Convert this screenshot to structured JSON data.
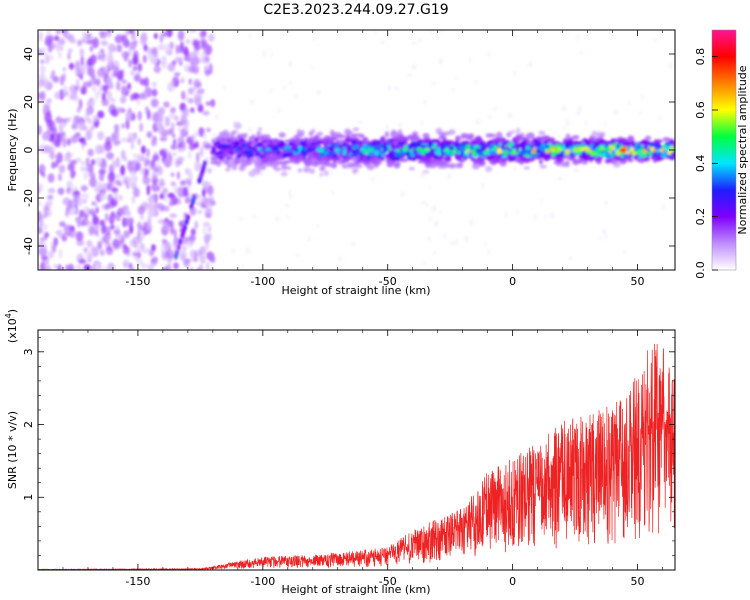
{
  "title": "C2E3.2023.244.09.27.G19",
  "chart_data": [
    {
      "type": "heatmap",
      "name": "spectrogram",
      "xlabel": "Height of straight line (km)",
      "ylabel": "Frequency (Hz)",
      "xlim": [
        -190,
        65
      ],
      "ylim": [
        -50,
        50
      ],
      "xticks": [
        -150,
        -100,
        -50,
        0,
        50
      ],
      "yticks": [
        -40,
        -20,
        0,
        20,
        40
      ],
      "colorbar": {
        "label": "Normalized spectral amplitude",
        "range": [
          0.0,
          0.9
        ],
        "ticks": [
          "0.0",
          "0.2",
          "0.4",
          "0.6",
          "0.8"
        ],
        "tick_values": [
          0.0,
          0.2,
          0.4,
          0.6,
          0.8
        ],
        "colormap": [
          "#ffffff",
          "#c08cff",
          "#7f00ff",
          "#1e1eff",
          "#00e5ff",
          "#00ff40",
          "#ffff00",
          "#ff8000",
          "#ff0000",
          "#ff1493"
        ]
      },
      "ridge": {
        "center_frequency": 0,
        "start_height": -120,
        "band_half_width": [
          8,
          4
        ],
        "peak_amplitude": [
          0.35,
          0.9
        ],
        "noise_region": [
          -190,
          -120
        ]
      }
    },
    {
      "type": "line",
      "name": "snr",
      "xlabel": "Height of straight line (km)",
      "ylabel": "SNR (10 * v/v)",
      "y_multiplier": "(x10",
      "y_multiplier_exp": "4",
      "y_multiplier_close": ")",
      "xlim": [
        -190,
        65
      ],
      "ylim": [
        0,
        3.3
      ],
      "xticks": [
        -150,
        -100,
        -50,
        0,
        50
      ],
      "yticks": [
        1,
        2,
        3
      ],
      "color": "#ee2222",
      "envelope": {
        "x": [
          -190,
          -125,
          -110,
          -100,
          -75,
          -60,
          -50,
          -40,
          -30,
          -20,
          -10,
          0,
          10,
          20,
          30,
          40,
          50,
          55,
          60,
          65
        ],
        "y": [
          0.01,
          0.02,
          0.12,
          0.18,
          0.22,
          0.28,
          0.32,
          0.55,
          0.72,
          0.85,
          1.35,
          1.55,
          1.75,
          2.05,
          2.15,
          2.3,
          2.75,
          3.2,
          3.1,
          2.6
        ]
      }
    }
  ]
}
